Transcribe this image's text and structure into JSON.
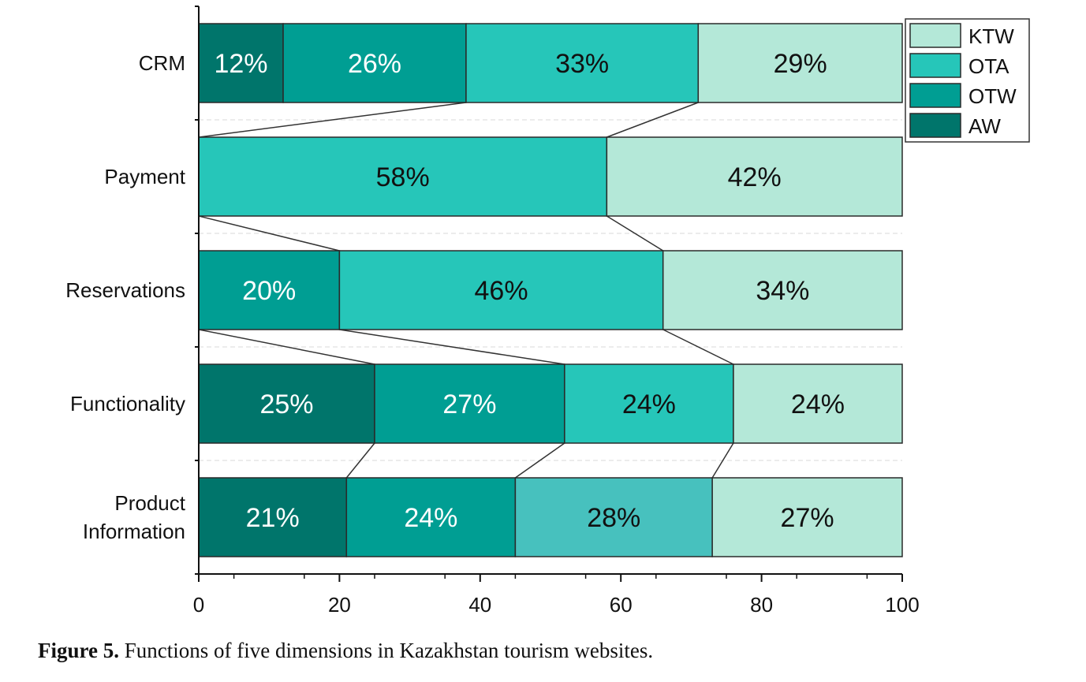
{
  "chart_data": {
    "type": "bar",
    "orientation": "horizontal",
    "stacked": true,
    "categories": [
      "CRM",
      "Payment",
      "Reservations",
      "Functionality",
      "Product Information"
    ],
    "category_labels": [
      [
        "CRM"
      ],
      [
        "Payment"
      ],
      [
        "Reservations"
      ],
      [
        "Functionality"
      ],
      [
        "Product",
        "Information"
      ]
    ],
    "segments": [
      [
        {
          "series": "AW",
          "value": 12,
          "label": "12%"
        },
        {
          "series": "OTW",
          "value": 26,
          "label": "26%"
        },
        {
          "series": "OTA",
          "value": 33,
          "label": "33%"
        },
        {
          "series": "KTW",
          "value": 29,
          "label": "29%"
        }
      ],
      [
        {
          "series": "OTA",
          "value": 58,
          "label": "58%"
        },
        {
          "series": "KTW",
          "value": 42,
          "label": "42%"
        }
      ],
      [
        {
          "series": "OTW",
          "value": 20,
          "label": "20%"
        },
        {
          "series": "OTA",
          "value": 46,
          "label": "46%"
        },
        {
          "series": "KTW",
          "value": 34,
          "label": "34%"
        }
      ],
      [
        {
          "series": "AW",
          "value": 25,
          "label": "25%"
        },
        {
          "series": "OTW",
          "value": 27,
          "label": "27%"
        },
        {
          "series": "OTA",
          "value": 24,
          "label": "24%"
        },
        {
          "series": "KTW",
          "value": 24,
          "label": "24%"
        }
      ],
      [
        {
          "series": "AW",
          "value": 21,
          "label": "21%"
        },
        {
          "series": "OTW",
          "value": 24,
          "label": "24%"
        },
        {
          "series": "OTA",
          "value": 28,
          "label": "28%",
          "color": "#47c1be"
        },
        {
          "series": "KTW",
          "value": 27,
          "label": "27%"
        }
      ]
    ],
    "series_colors": {
      "AW": "#00756b",
      "OTW": "#009e93",
      "OTA": "#26c6b9",
      "KTW": "#b4e8d8"
    },
    "label_colors": {
      "AW": "#ffffff",
      "OTW": "#ffffff",
      "OTA": "#111111",
      "KTW": "#111111"
    },
    "legend": [
      "KTW",
      "OTA",
      "OTW",
      "AW"
    ],
    "legend_position": "top-right",
    "xlim": [
      0,
      100
    ],
    "xticks": [
      0,
      20,
      40,
      60,
      80,
      100
    ],
    "xlabel": "",
    "ylabel": "",
    "connector_lines": true
  },
  "caption": {
    "label": "Figure 5.",
    "text": " Functions of five dimensions in Kazakhstan tourism websites."
  }
}
